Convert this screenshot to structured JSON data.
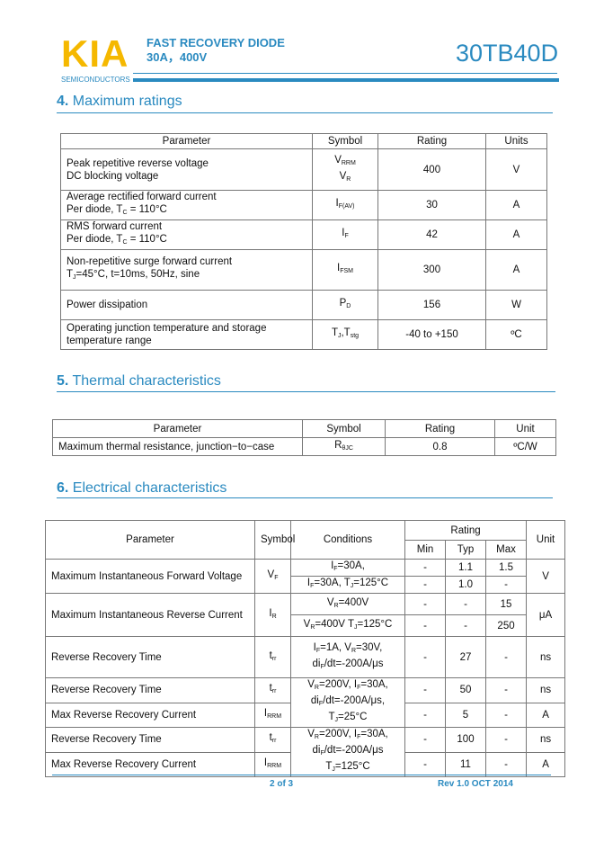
{
  "header": {
    "logo": "KIA",
    "logo_sub": "SEMICONDUCTORS",
    "product_line1": "FAST RECOVERY DIODE",
    "product_line2": "30A，400V",
    "part_number": "30TB40D"
  },
  "sections": {
    "max": {
      "num": "4.",
      "title": "Maximum ratings"
    },
    "thermal": {
      "num": "5.",
      "title": "Thermal characteristics"
    },
    "elec": {
      "num": "6.",
      "title": "Electrical characteristics"
    }
  },
  "max_table": {
    "headers": [
      "Parameter",
      "Symbol",
      "Rating",
      "Units"
    ],
    "rows": [
      {
        "p1": "Peak repetitive reverse voltage",
        "p2": "DC blocking voltage",
        "s1": "V",
        "s1sub": "RRM",
        "s2": "V",
        "s2sub": "R",
        "rating": "400",
        "unit": "V"
      },
      {
        "p1": "Average rectified forward current",
        "p2": "Per diode, T",
        "p2sub": "C",
        "p2end": " = 110°C",
        "s1": "I",
        "s1sub": "F(AV)",
        "rating": "30",
        "unit": "A"
      },
      {
        "p1": "RMS forward current",
        "p2": "Per diode, T",
        "p2sub": "C",
        "p2end": " = 110°C",
        "s1": "I",
        "s1sub": "F",
        "rating": "42",
        "unit": "A"
      },
      {
        "p1": "Non-repetitive   surge forward current",
        "p2": "T",
        "p2sub": "J",
        "p2end": "=45°C, t=10ms, 50Hz, sine",
        "s1": "I",
        "s1sub": "FSM",
        "rating": "300",
        "unit": "A"
      },
      {
        "p1": "Power dissipation",
        "s1": "P",
        "s1sub": "D",
        "rating": "156",
        "unit": "W"
      },
      {
        "p1": "Operating junction temperature and storage",
        "p2": "temperature range",
        "s1": "T",
        "s1sub": "J",
        "s1end": ",T",
        "s1sub2": "stg",
        "rating": "-40 to +150",
        "unit": "ºC"
      }
    ]
  },
  "thermal_table": {
    "headers": [
      "Parameter",
      "Symbol",
      "Rating",
      "Unit"
    ],
    "row": {
      "param": "Maximum thermal resistance, junction−to−case",
      "sym": "R",
      "symsub": "θJC",
      "rating": "0.8",
      "unit": "ºC/W"
    }
  },
  "elec_table": {
    "headers": {
      "param": "Parameter",
      "sym": "Symbol",
      "cond": "Conditions",
      "rating": "Rating",
      "min": "Min",
      "typ": "Typ",
      "max": "Max",
      "unit": "Unit"
    },
    "vf": {
      "param": "Maximum Instantaneous Forward Voltage",
      "sym": "V",
      "symsub": "F",
      "c1": "I",
      "c1sub": "F",
      "c1end": "=30A,",
      "c2": "I",
      "c2sub": "F",
      "c2mid": "=30A, T",
      "c2sub2": "J",
      "c2end": "=125°C",
      "r1": [
        "-",
        "1.1",
        "1.5"
      ],
      "r2": [
        "-",
        "1.0",
        "-"
      ],
      "unit": "V"
    },
    "ir": {
      "param": "Maximum Instantaneous Reverse Current",
      "sym": "I",
      "symsub": "R",
      "c1": "V",
      "c1sub": "R",
      "c1end": "=400V",
      "c2": "V",
      "c2sub": "R",
      "c2mid": "=400V T",
      "c2sub2": "J",
      "c2end": "=125°C",
      "r1": [
        "-",
        "-",
        "15"
      ],
      "r2": [
        "-",
        "-",
        "250"
      ],
      "unit": "μA"
    },
    "trr1": {
      "param": "Reverse Recovery Time",
      "sym": "t",
      "symsub": "rr",
      "c1a": "I",
      "c1asub": "F",
      "c1b": "=1A, V",
      "c1bsub": "R",
      "c1c": "=30V,",
      "c2a": "di",
      "c2asub": "F",
      "c2b": "/dt=-200A/μs",
      "vals": [
        "-",
        "27",
        "-"
      ],
      "unit": "ns"
    },
    "g25": {
      "c1a": "V",
      "c1asub": "R",
      "c1b": "=200V, I",
      "c1bsub": "F",
      "c1c": "=30A,",
      "c2a": "di",
      "c2asub": "F",
      "c2b": "/dt=-200A/μs,",
      "c3a": "T",
      "c3asub": "J",
      "c3b": "=25°C",
      "rows": [
        {
          "param": "Reverse Recovery Time",
          "sym": "t",
          "symsub": "rr",
          "vals": [
            "-",
            "50",
            "-"
          ],
          "unit": "ns"
        },
        {
          "param": "Max Reverse Recovery Current",
          "sym": "I",
          "symsub": "RRM",
          "vals": [
            "-",
            "5",
            "-"
          ],
          "unit": "A"
        }
      ]
    },
    "g125": {
      "c1a": "V",
      "c1asub": "R",
      "c1b": "=200V, I",
      "c1bsub": "F",
      "c1c": "=30A,",
      "c2a": "di",
      "c2asub": "F",
      "c2b": "/dt=-200A/μs",
      "c3a": "T",
      "c3asub": "J",
      "c3b": "=125°C",
      "rows": [
        {
          "param": "Reverse Recovery Time",
          "sym": "t",
          "symsub": "rr",
          "vals": [
            "-",
            "100",
            "-"
          ],
          "unit": "ns"
        },
        {
          "param": "Max Reverse Recovery Current",
          "sym": "I",
          "symsub": "RRM",
          "vals": [
            "-",
            "11",
            "-"
          ],
          "unit": "A"
        }
      ]
    }
  },
  "footer": {
    "page": "2 of 3",
    "rev": "Rev 1.0 OCT 2014"
  }
}
